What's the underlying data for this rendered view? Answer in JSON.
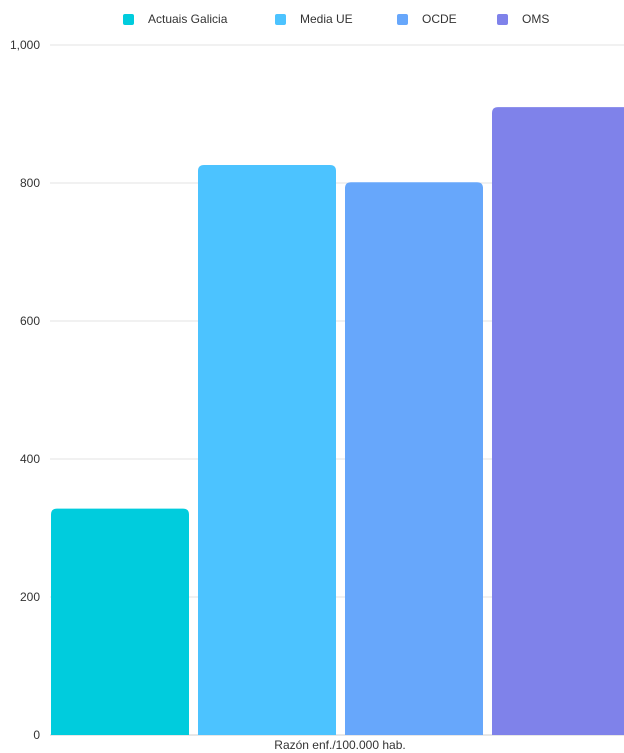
{
  "chart_data": {
    "type": "bar",
    "categories": [
      "Razón enf./100.000 hab."
    ],
    "series": [
      {
        "name": "Actuais Galicia",
        "color": "#00CCDD",
        "values": [
          328
        ]
      },
      {
        "name": "Media UE",
        "color": "#4CC3FF",
        "values": [
          826
        ]
      },
      {
        "name": "OCDE",
        "color": "#67A7FB",
        "values": [
          801
        ]
      },
      {
        "name": "OMS",
        "color": "#7F82EA",
        "values": [
          910
        ]
      }
    ],
    "xlabel": "Razón enf./100.000 hab.",
    "ylabel": "",
    "ylim": [
      0,
      1000
    ],
    "yticks": [
      0,
      200,
      400,
      600,
      800,
      1000
    ],
    "ytick_labels": [
      "0",
      "200",
      "400",
      "600",
      "800",
      "1,000"
    ],
    "grid": true,
    "legend_position": "top"
  }
}
